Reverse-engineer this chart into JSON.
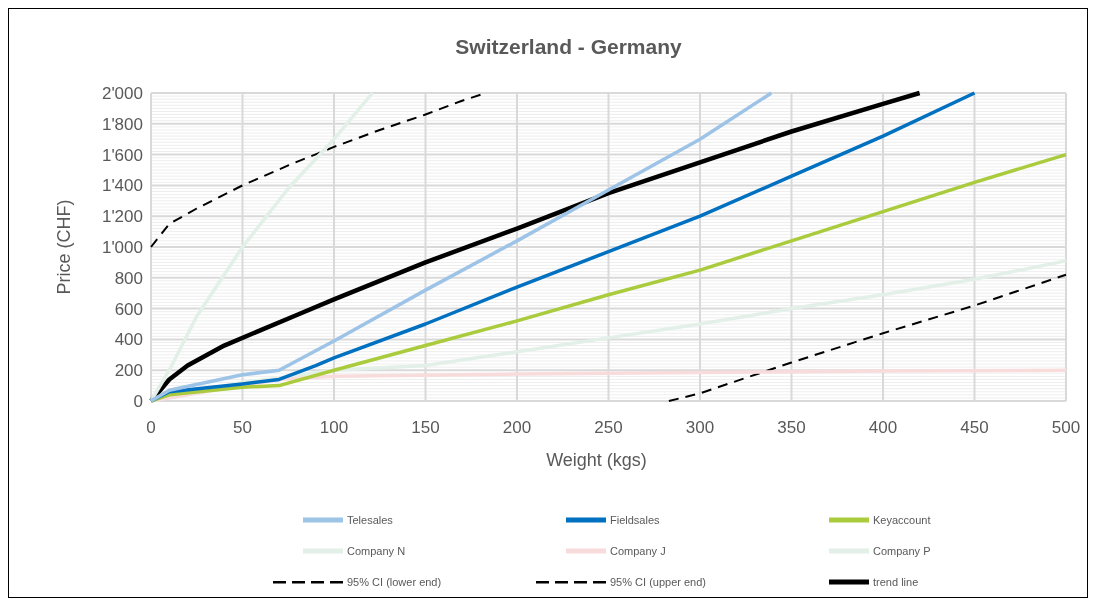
{
  "chart_data": {
    "type": "line",
    "title": "Switzerland - Germany",
    "xlabel": "Weight (kgs)",
    "ylabel": "Price (CHF)",
    "xlim": [
      0,
      500
    ],
    "xticks": [
      0,
      50,
      100,
      150,
      200,
      250,
      300,
      350,
      400,
      450,
      500
    ],
    "ylim": [
      0,
      2000
    ],
    "yticks": [
      0,
      200,
      400,
      600,
      800,
      {
        "value": 1000,
        "label": "1'000"
      },
      {
        "value": 1200,
        "label": "1'200"
      },
      {
        "value": 1400,
        "label": "1'400"
      },
      {
        "value": 1600,
        "label": "1'600"
      },
      {
        "value": 1800,
        "label": "1'800"
      },
      {
        "value": 2000,
        "label": "2'000"
      }
    ],
    "grid": true,
    "legend": "bottom",
    "marker": "none",
    "series": [
      {
        "name": "Telesales",
        "color": "#9dc3e6",
        "x": [
          0,
          10,
          50,
          70,
          100,
          150,
          200,
          250,
          300,
          339
        ],
        "values": [
          0,
          70,
          170,
          200,
          390,
          720,
          1040,
          1370,
          1700,
          2000
        ]
      },
      {
        "name": "Fieldsales",
        "color": "#0070c0",
        "x": [
          0,
          10,
          50,
          70,
          90,
          100,
          150,
          200,
          250,
          300,
          350,
          400,
          450
        ],
        "values": [
          0,
          60,
          110,
          140,
          230,
          280,
          500,
          740,
          970,
          1200,
          1460,
          1720,
          2000
        ]
      },
      {
        "name": "Keyaccount",
        "color": "#a9cb3c",
        "x": [
          0,
          10,
          50,
          70,
          100,
          150,
          200,
          250,
          300,
          350,
          400,
          450,
          500
        ],
        "values": [
          0,
          40,
          90,
          100,
          200,
          360,
          520,
          690,
          850,
          1040,
          1230,
          1420,
          1600
        ]
      },
      {
        "name": "Company N",
        "color": "#e2f0e8",
        "x": [
          0,
          10,
          25,
          50,
          75,
          100,
          121
        ],
        "values": [
          0,
          200,
          550,
          1000,
          1380,
          1700,
          2000
        ]
      },
      {
        "name": "Company J",
        "color": "#f8dcdc",
        "x": [
          0,
          70,
          100,
          200,
          300,
          400,
          500
        ],
        "values": [
          0,
          140,
          160,
          175,
          185,
          195,
          200
        ]
      },
      {
        "name": "Company P",
        "color": "#e2f0e8",
        "x": [
          0,
          50,
          70,
          100,
          150,
          200,
          250,
          300,
          350,
          400,
          450,
          500
        ],
        "values": [
          0,
          120,
          150,
          200,
          230,
          320,
          410,
          500,
          600,
          690,
          790,
          910
        ]
      },
      {
        "name": "95% CI (lower end)",
        "color": "#000000",
        "line_style": "dashed",
        "x": [
          283,
          300,
          350,
          400,
          450,
          500
        ],
        "values": [
          0,
          50,
          250,
          440,
          620,
          820
        ]
      },
      {
        "name": "95% CI (upper end)",
        "color": "#000000",
        "line_style": "dashed",
        "x": [
          0,
          10,
          25,
          50,
          75,
          100,
          125,
          150,
          170,
          183
        ],
        "values": [
          1000,
          1150,
          1250,
          1400,
          1530,
          1650,
          1760,
          1860,
          1950,
          2000
        ]
      },
      {
        "name": "trend line",
        "color": "#000000",
        "x": [
          0,
          10,
          20,
          40,
          60,
          80,
          100,
          150,
          200,
          250,
          300,
          350,
          400,
          420
        ],
        "values": [
          0,
          140,
          230,
          360,
          460,
          560,
          660,
          900,
          1120,
          1350,
          1550,
          1750,
          1930,
          2000
        ]
      }
    ]
  }
}
